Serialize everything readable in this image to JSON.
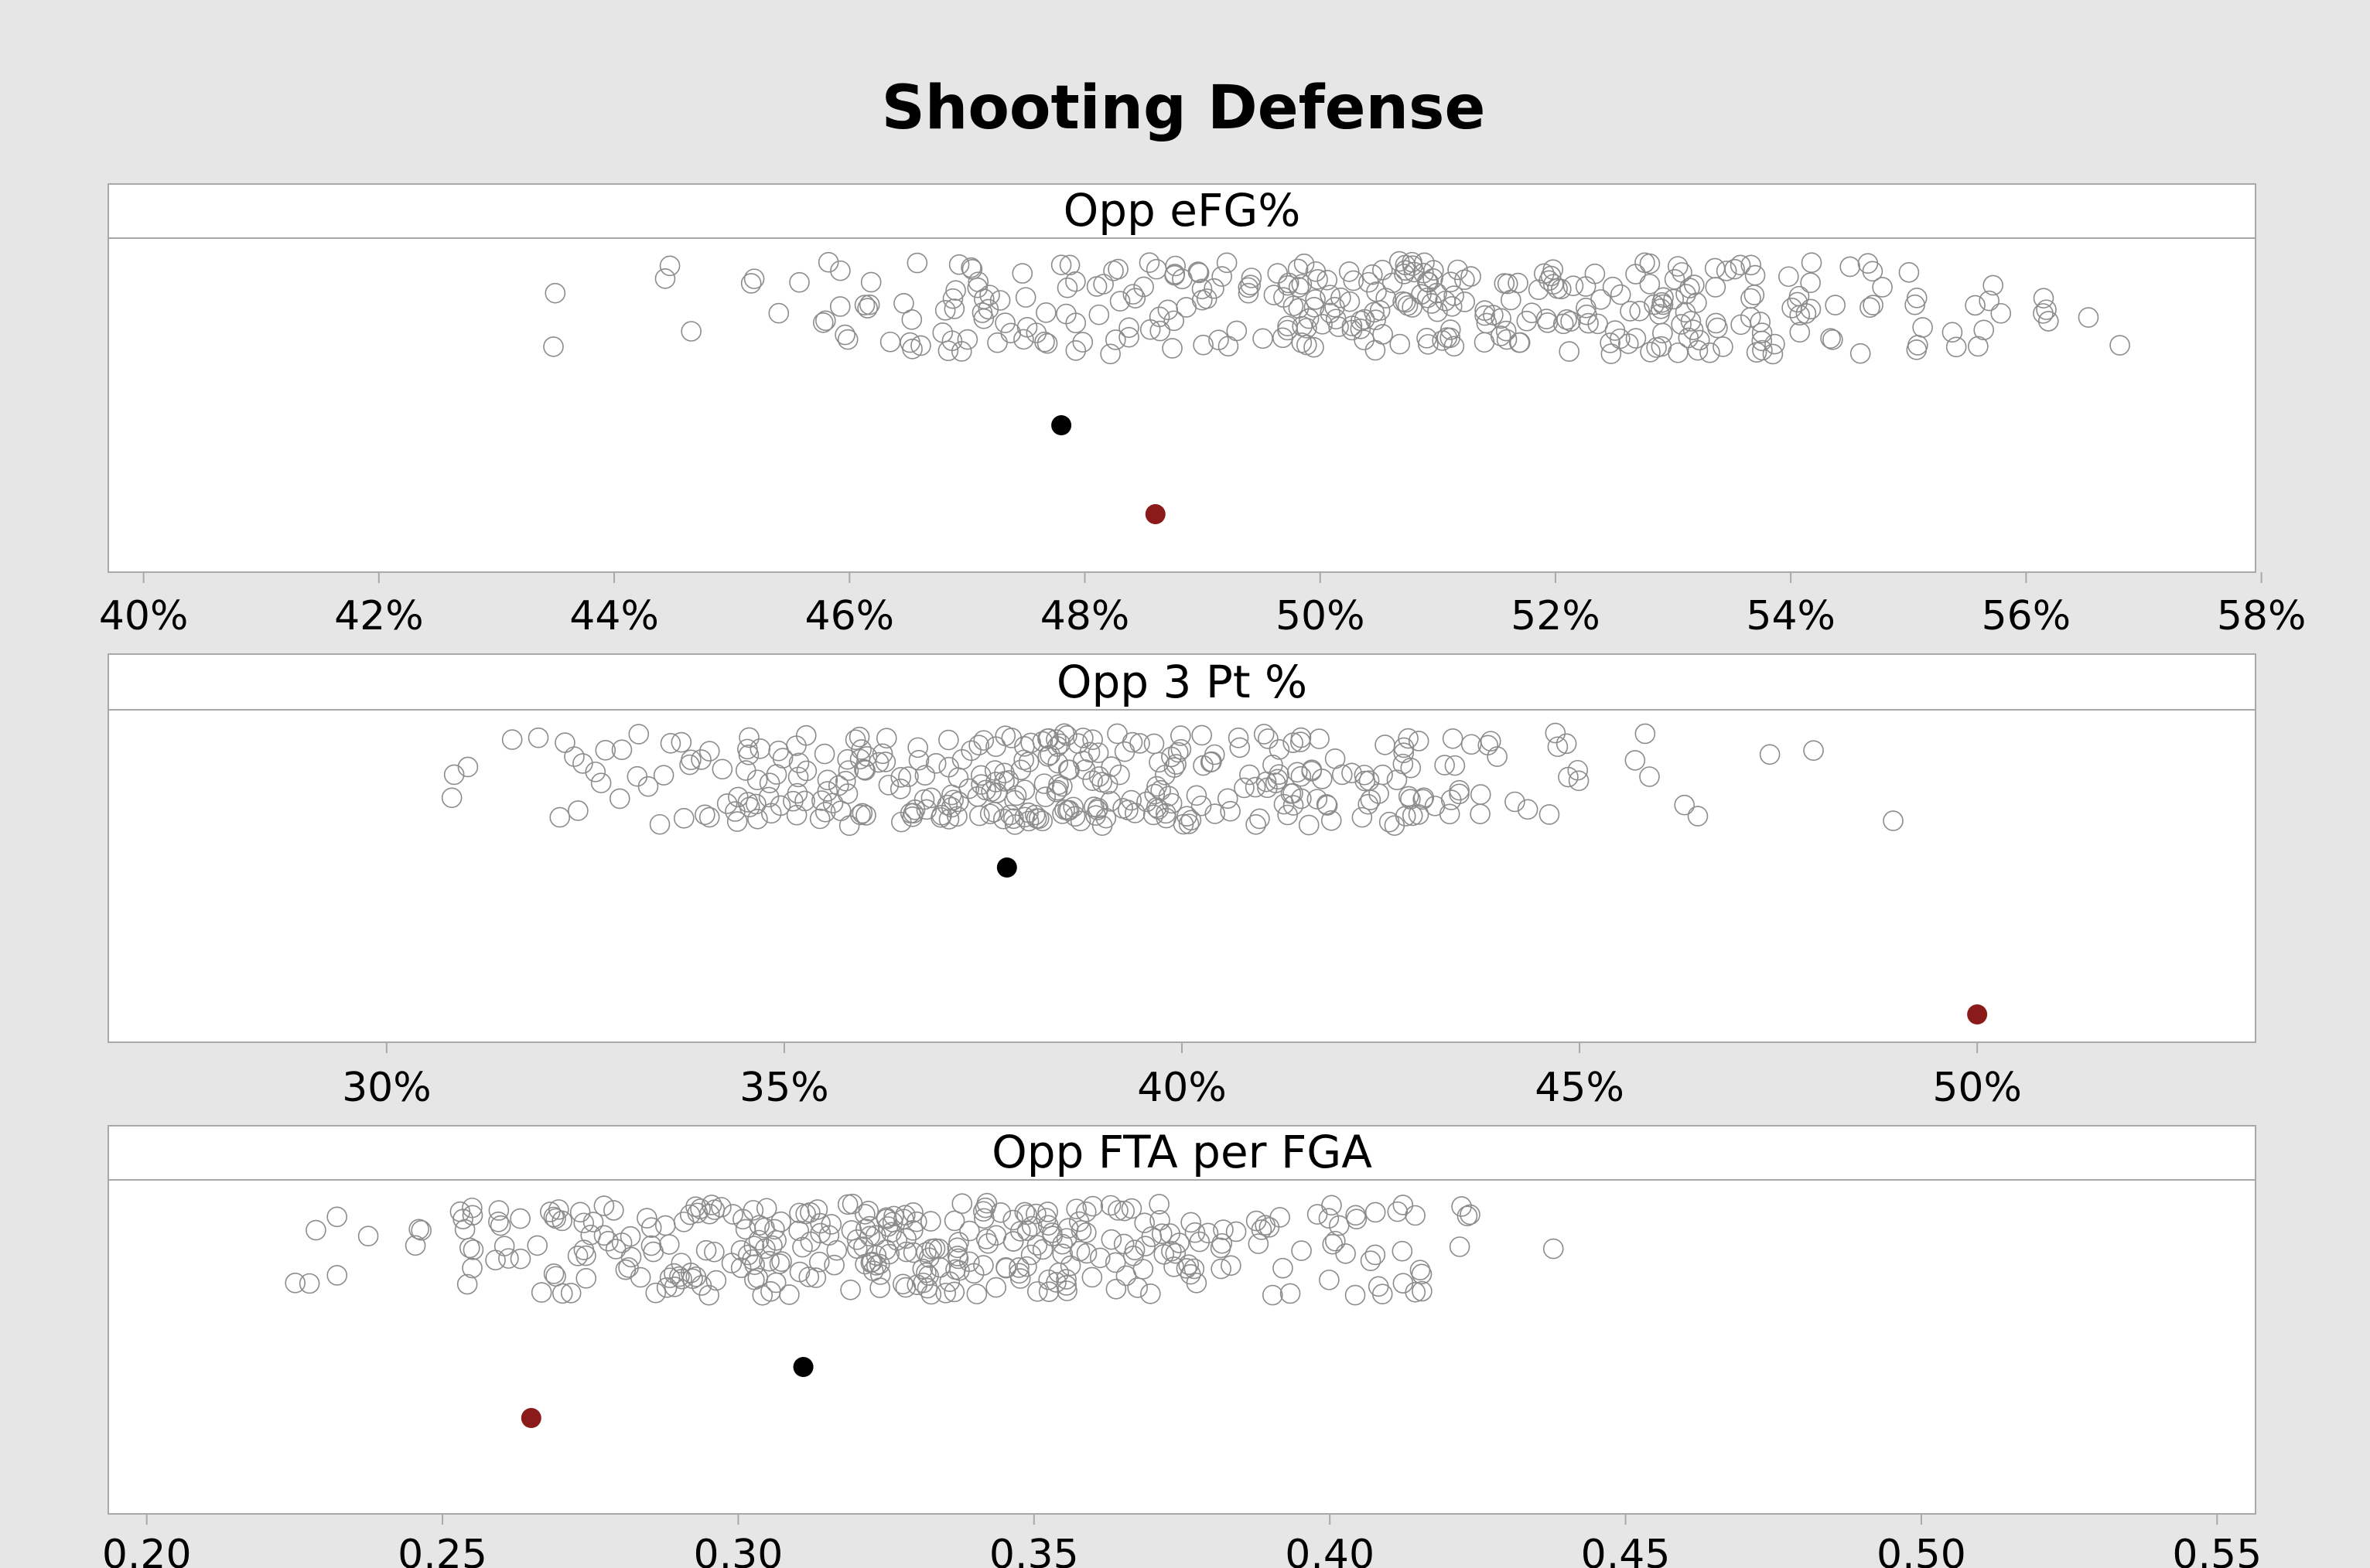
{
  "chart_data": {
    "type": "scatter",
    "title": "Shooting Defense",
    "panels": [
      {
        "title": "Opp eFG%",
        "xlim": [
          39.7,
          57.95
        ],
        "ticks": [
          40,
          42,
          44,
          46,
          48,
          50,
          52,
          54,
          56,
          58
        ],
        "tick_labels": [
          "40%",
          "42%",
          "44%",
          "46%",
          "48%",
          "50%",
          "52%",
          "54%",
          "56%",
          "58%"
        ],
        "highlights": [
          {
            "x": 47.8,
            "color": "#000000"
          },
          {
            "x": 48.6,
            "color": "#8b1a1a"
          }
        ],
        "range": [
          42.1,
          56.9
        ],
        "center": 50.5,
        "spread": 2.7,
        "n": 340,
        "seed": 11
      },
      {
        "title": "Opp 3 Pt %",
        "xlim": [
          26.5,
          53.5
        ],
        "ticks": [
          30,
          35,
          40,
          45,
          50
        ],
        "tick_labels": [
          "30%",
          "35%",
          "40%",
          "45%",
          "50%"
        ],
        "highlights": [
          {
            "x": 37.8,
            "color": "#000000"
          },
          {
            "x": 50.0,
            "color": "#8b1a1a"
          }
        ],
        "range": [
          27.3,
          51.4
        ],
        "center": 38.8,
        "spread": 3.3,
        "n": 340,
        "seed": 23
      },
      {
        "title": "Opp FTA per FGA",
        "xlim": [
          0.1935,
          0.5565
        ],
        "ticks": [
          0.2,
          0.25,
          0.3,
          0.35,
          0.4,
          0.45,
          0.5,
          0.55
        ],
        "tick_labels": [
          "0.20",
          "0.25",
          "0.30",
          "0.35",
          "0.40",
          "0.45",
          "0.50",
          "0.55"
        ],
        "highlights": [
          {
            "x": 0.311,
            "color": "#000000"
          },
          {
            "x": 0.265,
            "color": "#8b1a1a"
          }
        ],
        "range": [
          0.218,
          0.531
        ],
        "center": 0.33,
        "spread": 0.045,
        "n": 340,
        "seed": 37
      }
    ]
  }
}
